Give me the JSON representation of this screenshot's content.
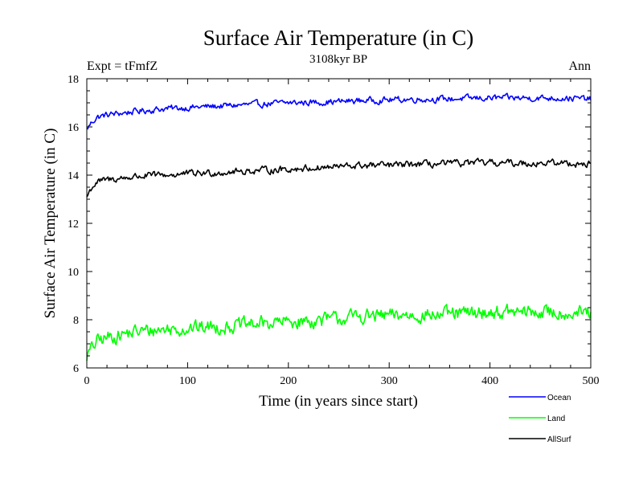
{
  "chart_data": {
    "type": "line",
    "title": "Surface Air Temperature (in C)",
    "subtitle": "3108kyr BP",
    "left_label": "Expt = tFmfZ",
    "right_label": "Ann",
    "xlabel": "Time (in years since start)",
    "ylabel": "Surface Air Temperature (in C)",
    "xlim": [
      0,
      500
    ],
    "ylim": [
      6,
      18
    ],
    "xticks": [
      0,
      100,
      200,
      300,
      400,
      500
    ],
    "yticks": [
      6,
      8,
      10,
      12,
      14,
      16,
      18
    ],
    "x": [
      0,
      5,
      10,
      20,
      30,
      50,
      75,
      100,
      125,
      150,
      175,
      200,
      225,
      250,
      275,
      300,
      325,
      350,
      375,
      400,
      425,
      450,
      475,
      500
    ],
    "series": [
      {
        "name": "Ocean",
        "color": "#0000ff",
        "values": [
          15.9,
          16.2,
          16.4,
          16.5,
          16.55,
          16.65,
          16.75,
          16.8,
          16.85,
          16.9,
          16.95,
          17.0,
          17.02,
          17.05,
          17.1,
          17.12,
          17.15,
          17.15,
          17.18,
          17.2,
          17.2,
          17.2,
          17.2,
          17.15
        ]
      },
      {
        "name": "Land",
        "color": "#00ff00",
        "values": [
          6.5,
          6.8,
          7.1,
          7.25,
          7.35,
          7.5,
          7.6,
          7.65,
          7.7,
          7.75,
          7.85,
          7.9,
          7.95,
          8.05,
          8.15,
          8.15,
          8.2,
          8.2,
          8.25,
          8.3,
          8.3,
          8.3,
          8.3,
          8.25
        ]
      },
      {
        "name": "AllSurf",
        "color": "#000000",
        "values": [
          13.1,
          13.5,
          13.7,
          13.8,
          13.85,
          13.95,
          14.0,
          14.05,
          14.1,
          14.15,
          14.2,
          14.25,
          14.3,
          14.35,
          14.4,
          14.4,
          14.45,
          14.45,
          14.5,
          14.5,
          14.5,
          14.5,
          14.5,
          14.45
        ]
      }
    ]
  }
}
